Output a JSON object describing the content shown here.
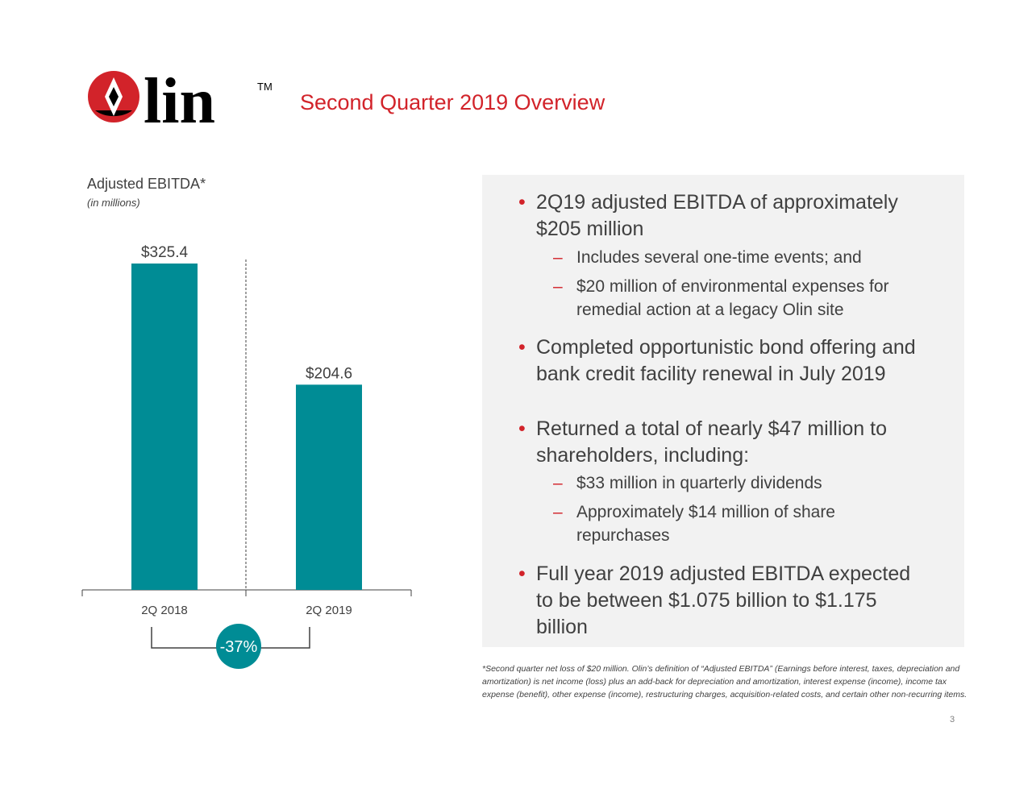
{
  "header": {
    "title": "Second Quarter 2019 Overview",
    "logo": {
      "text": "lin",
      "trademark": "TM",
      "colors": {
        "red": "#d2232a",
        "black": "#000000"
      }
    }
  },
  "chart_data": {
    "type": "bar",
    "title": "Adjusted EBITDA*",
    "subtitle": "(in millions)",
    "categories": [
      "2Q 2018",
      "2Q 2019"
    ],
    "values": [
      325.4,
      204.6
    ],
    "value_labels": [
      "$325.4",
      "$204.6"
    ],
    "xlabel": "",
    "ylabel": "",
    "ylim": [
      0,
      325.4
    ],
    "grid": false,
    "bar_color": "#008c95",
    "change_label": "-37%",
    "change_color": "#008c95"
  },
  "panel": {
    "bullets": [
      {
        "text": "2Q19 adjusted EBITDA of approximately $205 million",
        "subs": [
          "Includes several one-time events; and",
          "$20 million of environmental expenses for remedial action at a legacy Olin site"
        ]
      },
      {
        "text": "Completed opportunistic bond offering and bank credit facility renewal in July 2019",
        "subs": []
      },
      {
        "text": "Returned a total of nearly $47 million to shareholders, including:",
        "subs": [
          "$33 million in quarterly dividends",
          "Approximately $14 million of share repurchases"
        ]
      },
      {
        "text": "Full year 2019 adjusted EBITDA expected to be between $1.075 billion to $1.175 billion",
        "subs": []
      }
    ],
    "bullet_glyph": "•",
    "dash_glyph": "–",
    "accent": "#d2232a",
    "background": "#f2f2f2"
  },
  "footnote": "*Second quarter net loss of $20 million. Olin’s definition of “Adjusted EBITDA” (Earnings before interest, taxes, depreciation and amortization) is net income (loss) plus an add-back for depreciation and amortization, interest expense (income), income tax expense (benefit), other expense (income), restructuring charges, acquisition-related costs, and certain other non-recurring items.",
  "page_number": "3"
}
